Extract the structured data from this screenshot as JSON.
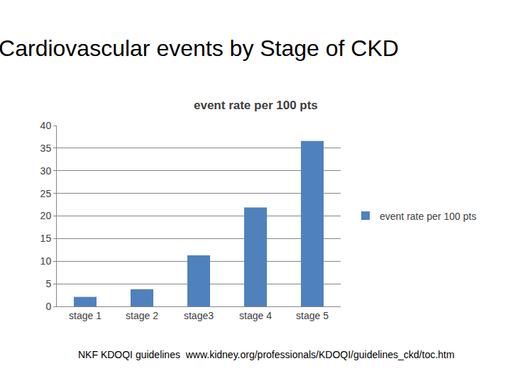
{
  "chart_data": {
    "type": "bar",
    "title": "Cardiovascular events by Stage of CKD",
    "subtitle": "event rate per 100 pts",
    "categories": [
      "stage 1",
      "stage 2",
      "stage3",
      "stage 4",
      "stage 5"
    ],
    "series": [
      {
        "name": "event rate per 100 pts",
        "color": "#4f81bd",
        "values": [
          2.1,
          3.8,
          11.3,
          21.9,
          36.6
        ]
      }
    ],
    "ylim": [
      0,
      40
    ],
    "yticks": [
      0,
      5,
      10,
      15,
      20,
      25,
      30,
      35,
      40
    ],
    "grid": true,
    "legend": "right",
    "annotations": [
      "NKF KDOQI guidelines  www.kidney.org/professionals/KDOQI/guidelines_ckd/toc.htm"
    ]
  }
}
